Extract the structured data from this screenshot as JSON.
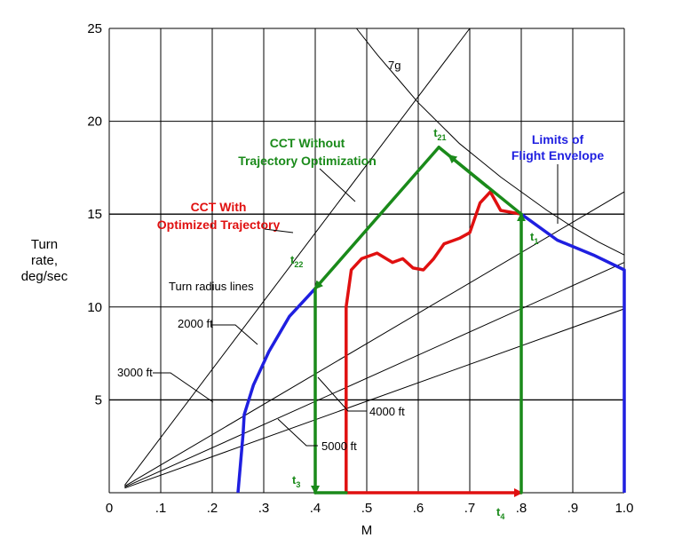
{
  "chart_data": {
    "type": "line",
    "title": "",
    "xlabel": "M",
    "ylabel_lines": [
      "Turn",
      "rate,",
      "deg/sec"
    ],
    "xlim": [
      0,
      1.0
    ],
    "ylim": [
      0,
      25
    ],
    "grid": true,
    "x_ticks": [
      {
        "value": 0,
        "label": "0"
      },
      {
        "value": 0.1,
        "label": ".1"
      },
      {
        "value": 0.2,
        "label": ".2"
      },
      {
        "value": 0.3,
        "label": ".3"
      },
      {
        "value": 0.4,
        "label": ".4"
      },
      {
        "value": 0.5,
        "label": ".5"
      },
      {
        "value": 0.6,
        "label": ".6"
      },
      {
        "value": 0.7,
        "label": ".7"
      },
      {
        "value": 0.8,
        "label": ".8"
      },
      {
        "value": 0.9,
        "label": ".9"
      },
      {
        "value": 1.0,
        "label": "1.0"
      }
    ],
    "y_ticks": [
      {
        "value": 5,
        "label": "5"
      },
      {
        "value": 10,
        "label": "10"
      },
      {
        "value": 15,
        "label": "15"
      },
      {
        "value": 20,
        "label": "20"
      },
      {
        "value": 25,
        "label": "25"
      }
    ],
    "reference_lines": [
      {
        "name": "2000 ft",
        "points": [
          [
            0.03,
            0.4
          ],
          [
            0.7,
            25
          ]
        ]
      },
      {
        "name": "3000 ft",
        "points": [
          [
            0.03,
            0.35
          ],
          [
            1.0,
            16.2
          ]
        ]
      },
      {
        "name": "4000 ft",
        "points": [
          [
            0.03,
            0.3
          ],
          [
            1.0,
            12.4
          ]
        ]
      },
      {
        "name": "5000 ft",
        "points": [
          [
            0.03,
            0.25
          ],
          [
            1.0,
            9.9
          ]
        ]
      },
      {
        "name": "7g",
        "points": [
          [
            0.48,
            25
          ],
          [
            0.52,
            23.6
          ],
          [
            0.56,
            22.3
          ],
          [
            0.6,
            21.0
          ],
          [
            0.64,
            19.9
          ],
          [
            0.68,
            18.8
          ],
          [
            0.72,
            17.9
          ],
          [
            0.76,
            17.0
          ],
          [
            0.8,
            16.2
          ],
          [
            0.85,
            15.2
          ],
          [
            0.9,
            14.3
          ],
          [
            0.95,
            13.5
          ],
          [
            1.0,
            12.8
          ]
        ]
      }
    ],
    "series": [
      {
        "name": "Limits of Flight Envelope",
        "color": "#1f1fe0",
        "points": [
          [
            0.25,
            0
          ],
          [
            0.26,
            3.2
          ],
          [
            0.262,
            4.2
          ],
          [
            0.28,
            5.8
          ],
          [
            0.31,
            7.6
          ],
          [
            0.35,
            9.5
          ],
          [
            0.4,
            11.0
          ]
        ],
        "points2": [
          [
            0.8,
            15.0
          ],
          [
            0.87,
            13.6
          ],
          [
            0.94,
            12.8
          ],
          [
            1.0,
            12.0
          ],
          [
            1.0,
            0
          ]
        ]
      },
      {
        "name": "CCT Without Trajectory Optimization",
        "color": "#1a8a1a",
        "points": [
          [
            0.8,
            0
          ],
          [
            0.8,
            15.0
          ],
          [
            0.64,
            18.6
          ],
          [
            0.4,
            11.0
          ],
          [
            0.4,
            0
          ],
          [
            0.46,
            0
          ]
        ]
      },
      {
        "name": "CCT With Optimized Trajectory",
        "color": "#e01010",
        "points": [
          [
            0.46,
            0
          ],
          [
            0.46,
            10.0
          ],
          [
            0.47,
            12.0
          ],
          [
            0.49,
            12.6
          ],
          [
            0.52,
            12.9
          ],
          [
            0.55,
            12.4
          ],
          [
            0.57,
            12.6
          ],
          [
            0.59,
            12.1
          ],
          [
            0.61,
            12.0
          ],
          [
            0.63,
            12.6
          ],
          [
            0.65,
            13.4
          ],
          [
            0.68,
            13.7
          ],
          [
            0.7,
            14.0
          ],
          [
            0.72,
            15.6
          ],
          [
            0.74,
            16.2
          ],
          [
            0.76,
            15.2
          ],
          [
            0.8,
            15.0
          ]
        ],
        "points2": [
          [
            0.46,
            0
          ],
          [
            0.8,
            0
          ]
        ]
      }
    ],
    "annotations": {
      "cct_without": [
        "CCT Without",
        "Trajectory Optimization"
      ],
      "cct_with": [
        "CCT With",
        "Optimized Trajectory"
      ],
      "envelope": [
        "Limits of",
        "Flight Envelope"
      ],
      "turn_radius": "Turn radius lines",
      "r2000": "2000 ft",
      "r3000": "3000 ft",
      "r4000": "4000 ft",
      "r5000": "5000 ft",
      "g7": "7g"
    },
    "time_labels": [
      {
        "base": "t",
        "sub": "1",
        "x": 0.8,
        "y": 15.0
      },
      {
        "base": "t",
        "sub": "21",
        "x": 0.64,
        "y": 18.6
      },
      {
        "base": "t",
        "sub": "22",
        "x": 0.4,
        "y": 11.0
      },
      {
        "base": "t",
        "sub": "3",
        "x": 0.4,
        "y": 0
      },
      {
        "base": "t",
        "sub": "4",
        "x": 0.8,
        "y": 0
      }
    ]
  }
}
